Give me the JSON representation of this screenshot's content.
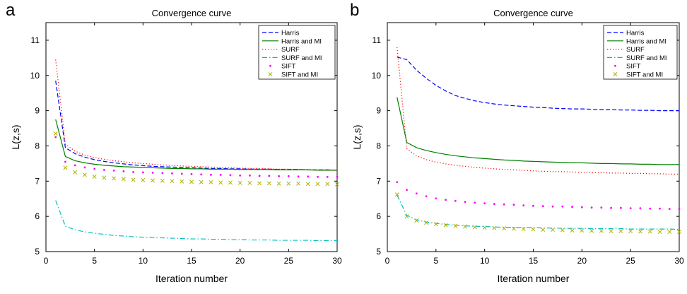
{
  "figure": {
    "panels": [
      "a",
      "b"
    ]
  },
  "chart_data": [
    {
      "panel_label": "a",
      "type": "line",
      "title": "Convergence curve",
      "xlabel": "Iteration number",
      "ylabel": "L(z,s)",
      "xlim": [
        0,
        30
      ],
      "ylim": [
        5,
        11.5
      ],
      "xticks": [
        "0",
        "5",
        "10",
        "15",
        "20",
        "25",
        "30"
      ],
      "yticks": [
        "5",
        "6",
        "7",
        "8",
        "9",
        "10",
        "11"
      ],
      "legend_position": "top-right",
      "grid": false,
      "x": [
        1,
        2,
        3,
        4,
        5,
        6,
        7,
        8,
        9,
        10,
        11,
        12,
        13,
        14,
        15,
        16,
        17,
        18,
        19,
        20,
        21,
        22,
        23,
        24,
        25,
        26,
        27,
        28,
        29,
        30
      ],
      "series": [
        {
          "name": "Harris",
          "style": "dashed",
          "color": "#0000ff",
          "values": [
            9.85,
            7.95,
            7.78,
            7.68,
            7.61,
            7.56,
            7.52,
            7.49,
            7.46,
            7.44,
            7.42,
            7.41,
            7.4,
            7.39,
            7.38,
            7.37,
            7.36,
            7.36,
            7.35,
            7.35,
            7.34,
            7.34,
            7.34,
            7.33,
            7.33,
            7.33,
            7.32,
            7.32,
            7.32,
            7.31
          ]
        },
        {
          "name": "Harris and MI",
          "style": "solid",
          "color": "#008000",
          "values": [
            8.75,
            7.7,
            7.58,
            7.52,
            7.48,
            7.45,
            7.43,
            7.41,
            7.4,
            7.39,
            7.38,
            7.37,
            7.36,
            7.36,
            7.35,
            7.35,
            7.34,
            7.34,
            7.34,
            7.33,
            7.33,
            7.33,
            7.33,
            7.32,
            7.32,
            7.32,
            7.32,
            7.31,
            7.31,
            7.31
          ]
        },
        {
          "name": "SURF",
          "style": "dotted",
          "color": "#ff0000",
          "values": [
            10.45,
            8.05,
            7.85,
            7.74,
            7.67,
            7.62,
            7.58,
            7.55,
            7.52,
            7.5,
            7.48,
            7.46,
            7.45,
            7.43,
            7.42,
            7.41,
            7.4,
            7.39,
            7.38,
            7.37,
            7.36,
            7.36,
            7.35,
            7.34,
            7.34,
            7.33,
            7.33,
            7.32,
            7.32,
            7.31
          ]
        },
        {
          "name": "SURF and MI",
          "style": "dashdot",
          "color": "#00bfbf",
          "values": [
            6.45,
            5.72,
            5.62,
            5.56,
            5.52,
            5.49,
            5.46,
            5.44,
            5.42,
            5.41,
            5.4,
            5.39,
            5.38,
            5.37,
            5.36,
            5.36,
            5.35,
            5.35,
            5.34,
            5.34,
            5.33,
            5.33,
            5.33,
            5.32,
            5.32,
            5.32,
            5.32,
            5.31,
            5.31,
            5.31
          ]
        },
        {
          "name": "SIFT",
          "style": "point",
          "color": "#ff00ff",
          "values": [
            8.25,
            7.55,
            7.45,
            7.39,
            7.35,
            7.32,
            7.3,
            7.28,
            7.26,
            7.25,
            7.24,
            7.23,
            7.22,
            7.21,
            7.2,
            7.19,
            7.18,
            7.18,
            7.17,
            7.16,
            7.16,
            7.15,
            7.15,
            7.14,
            7.14,
            7.13,
            7.13,
            7.12,
            7.12,
            7.12
          ]
        },
        {
          "name": "SIFT and MI",
          "style": "cross",
          "color": "#b0b000",
          "values": [
            8.35,
            7.38,
            7.25,
            7.18,
            7.13,
            7.1,
            7.08,
            7.06,
            7.04,
            7.03,
            7.02,
            7.01,
            7.0,
            6.99,
            6.98,
            6.97,
            6.97,
            6.96,
            6.96,
            6.95,
            6.95,
            6.94,
            6.94,
            6.93,
            6.93,
            6.93,
            6.92,
            6.92,
            6.92,
            6.91
          ]
        }
      ]
    },
    {
      "panel_label": "b",
      "type": "line",
      "title": "Convergence curve",
      "xlabel": "Iteration number",
      "ylabel": "L(z,s)",
      "xlim": [
        0,
        30
      ],
      "ylim": [
        5,
        11.5
      ],
      "xticks": [
        "0",
        "5",
        "10",
        "15",
        "20",
        "25",
        "30"
      ],
      "yticks": [
        "5",
        "6",
        "7",
        "8",
        "9",
        "10",
        "11"
      ],
      "legend_position": "top-right",
      "grid": false,
      "x": [
        1,
        2,
        3,
        4,
        5,
        6,
        7,
        8,
        9,
        10,
        11,
        12,
        13,
        14,
        15,
        16,
        17,
        18,
        19,
        20,
        21,
        22,
        23,
        24,
        25,
        26,
        27,
        28,
        29,
        30
      ],
      "series": [
        {
          "name": "Harris",
          "style": "dashed",
          "color": "#0000ff",
          "values": [
            10.52,
            10.45,
            10.15,
            9.92,
            9.72,
            9.56,
            9.43,
            9.35,
            9.28,
            9.23,
            9.19,
            9.16,
            9.14,
            9.12,
            9.1,
            9.09,
            9.07,
            9.06,
            9.05,
            9.05,
            9.04,
            9.03,
            9.03,
            9.02,
            9.02,
            9.01,
            9.01,
            9.0,
            9.0,
            9.0
          ]
        },
        {
          "name": "Harris and MI",
          "style": "solid",
          "color": "#008000",
          "values": [
            9.38,
            8.1,
            7.95,
            7.87,
            7.81,
            7.76,
            7.72,
            7.69,
            7.66,
            7.64,
            7.62,
            7.6,
            7.59,
            7.57,
            7.56,
            7.55,
            7.54,
            7.53,
            7.52,
            7.52,
            7.51,
            7.5,
            7.5,
            7.49,
            7.49,
            7.48,
            7.48,
            7.47,
            7.47,
            7.47
          ]
        },
        {
          "name": "SURF",
          "style": "dotted",
          "color": "#ff0000",
          "values": [
            10.8,
            7.92,
            7.72,
            7.61,
            7.54,
            7.49,
            7.45,
            7.42,
            7.39,
            7.37,
            7.35,
            7.33,
            7.32,
            7.31,
            7.29,
            7.28,
            7.27,
            7.27,
            7.26,
            7.25,
            7.24,
            7.24,
            7.23,
            7.23,
            7.22,
            7.22,
            7.21,
            7.21,
            7.2,
            7.2
          ]
        },
        {
          "name": "SURF and MI",
          "style": "dashdot",
          "color": "#00bfbf",
          "values": [
            6.6,
            6.03,
            5.9,
            5.84,
            5.8,
            5.77,
            5.75,
            5.73,
            5.72,
            5.71,
            5.7,
            5.69,
            5.69,
            5.68,
            5.68,
            5.67,
            5.67,
            5.66,
            5.66,
            5.66,
            5.65,
            5.65,
            5.65,
            5.65,
            5.64,
            5.64,
            5.64,
            5.64,
            5.64,
            5.63
          ]
        },
        {
          "name": "SIFT",
          "style": "point",
          "color": "#ff00ff",
          "values": [
            6.97,
            6.75,
            6.65,
            6.57,
            6.51,
            6.47,
            6.44,
            6.41,
            6.39,
            6.37,
            6.35,
            6.34,
            6.33,
            6.31,
            6.3,
            6.29,
            6.28,
            6.28,
            6.27,
            6.26,
            6.25,
            6.25,
            6.24,
            6.24,
            6.23,
            6.23,
            6.22,
            6.22,
            6.21,
            6.21
          ]
        },
        {
          "name": "SIFT and MI",
          "style": "cross",
          "color": "#b0b000",
          "values": [
            6.62,
            6.0,
            5.88,
            5.82,
            5.78,
            5.75,
            5.73,
            5.71,
            5.69,
            5.68,
            5.67,
            5.66,
            5.65,
            5.64,
            5.63,
            5.62,
            5.62,
            5.61,
            5.6,
            5.6,
            5.59,
            5.59,
            5.58,
            5.58,
            5.58,
            5.57,
            5.57,
            5.56,
            5.56,
            5.56
          ]
        }
      ]
    }
  ]
}
